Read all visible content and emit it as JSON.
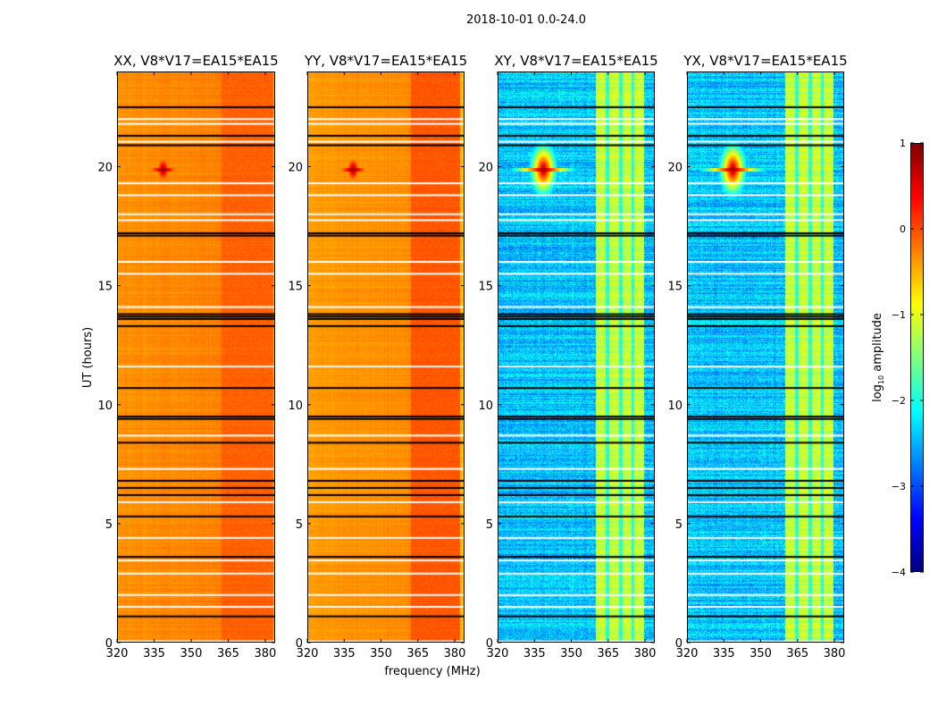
{
  "figure_title": "2018-10-01 0.0-24.0",
  "chart_data": {
    "type": "heatmap",
    "title": "2018-10-01 0.0-24.0",
    "xlabel": "frequency (MHz)",
    "ylabel": "UT (hours)",
    "xlim": [
      320,
      384
    ],
    "ylim": [
      0,
      24
    ],
    "xticks": [
      320,
      335,
      350,
      365,
      380
    ],
    "yticks": [
      0,
      5,
      10,
      15,
      20
    ],
    "colorbar": {
      "label": "log",
      "label_sub": "10",
      "label_rest": " amplitude",
      "colormap": "jet",
      "range": [
        -4,
        1
      ],
      "ticks": [
        1,
        0,
        -1,
        -2,
        -3,
        -4
      ],
      "tick_labels": [
        "1",
        "0",
        "−1",
        "−2",
        "−3",
        "−4"
      ]
    },
    "flagged_black_hours": [
      22.5,
      21.3,
      20.9,
      17.2,
      17.1,
      13.8,
      13.7,
      13.6,
      13.3,
      10.7,
      9.5,
      9.4,
      8.4,
      6.8,
      6.5,
      6.2,
      5.3,
      3.6,
      1.1
    ],
    "gap_white_hours": [
      22.0,
      21.8,
      21.05,
      19.3,
      18.8,
      18.0,
      17.75,
      16.0,
      15.5,
      14.1,
      11.6,
      8.7,
      7.3,
      5.9,
      4.4,
      3.45,
      2.9,
      2.0,
      1.5,
      0.05
    ],
    "rfi_source": {
      "freq_mhz": 338.5,
      "hour": 19.9,
      "log_amp": 0.9
    },
    "panels": [
      {
        "title": "XX, V8*V17=EA15*EA15",
        "base_log_amp": -0.35,
        "band_mhz": [
          362,
          383
        ],
        "band_log_amp": -0.1
      },
      {
        "title": "YY, V8*V17=EA15*EA15",
        "base_log_amp": -0.4,
        "band_mhz": [
          362,
          382
        ],
        "band_log_amp": -0.05
      },
      {
        "title": "XY, V8*V17=EA15*EA15",
        "base_log_amp": -2.4,
        "band_mhz": [
          360,
          379.6
        ],
        "band_log_amp": -1.15
      },
      {
        "title": "YX, V8*V17=EA15*EA15",
        "base_log_amp": -2.4,
        "band_mhz": [
          360,
          379.6
        ],
        "band_log_amp": -1.15
      }
    ]
  }
}
